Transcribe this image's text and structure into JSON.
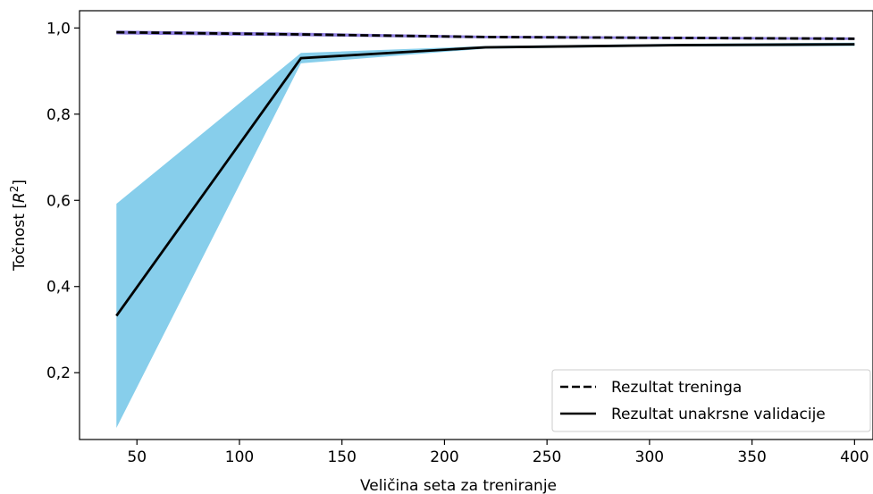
{
  "chart_data": {
    "type": "line",
    "xlabel": "Veličina seta za treniranje",
    "ylabel_main": "Točnost [",
    "ylabel_math": "R",
    "ylabel_sup": "2",
    "ylabel_end": "]",
    "xlim": [
      22,
      409
    ],
    "ylim": [
      0.045,
      1.04
    ],
    "xticks": [
      50,
      100,
      150,
      200,
      250,
      300,
      350,
      400
    ],
    "xtick_labels": [
      "50",
      "100",
      "150",
      "200",
      "250",
      "300",
      "350",
      "400"
    ],
    "yticks": [
      0.2,
      0.4,
      0.6,
      0.8,
      1.0
    ],
    "ytick_labels": [
      "0,2",
      "0,4",
      "0,6",
      "0,8",
      "1,0"
    ],
    "x": [
      40,
      130,
      220,
      310,
      400
    ],
    "series": [
      {
        "name": "Rezultat treninga",
        "style": "dashed",
        "color": "#000000",
        "values": [
          0.99,
          0.985,
          0.979,
          0.977,
          0.975
        ],
        "band_lower": [
          0.985,
          0.981,
          0.976,
          0.974,
          0.972
        ],
        "band_upper": [
          0.994,
          0.989,
          0.982,
          0.98,
          0.978
        ],
        "band_color": "#8e7ee0"
      },
      {
        "name": "Rezultat unakrsne validacije",
        "style": "solid",
        "color": "#000000",
        "values": [
          0.332,
          0.93,
          0.955,
          0.96,
          0.962
        ],
        "band_lower": [
          0.072,
          0.918,
          0.952,
          0.957,
          0.958
        ],
        "band_upper": [
          0.592,
          0.942,
          0.958,
          0.963,
          0.966
        ],
        "band_color": "#87ceeb"
      }
    ],
    "legend_position": "bottom-right",
    "grid": false
  }
}
